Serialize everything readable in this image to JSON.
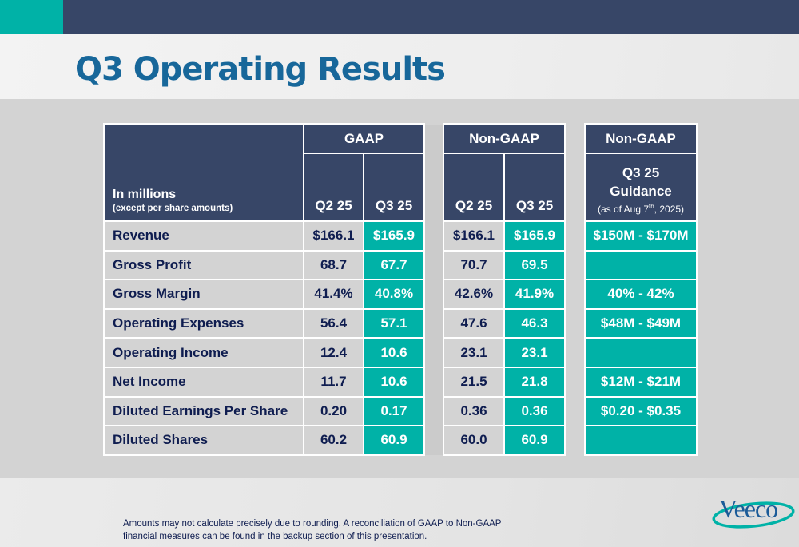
{
  "page": {
    "title": "Q3 Operating Results",
    "accent_color": "#00b2a7",
    "header_color": "#374667",
    "title_color": "#17679a"
  },
  "table": {
    "label_header": "In millions",
    "label_subheader": "(except per share amounts)",
    "gaap": {
      "group_label": "GAAP",
      "columns": [
        "Q2 25",
        "Q3 25"
      ]
    },
    "non_gaap": {
      "group_label": "Non-GAAP",
      "columns": [
        "Q2 25",
        "Q3 25"
      ]
    },
    "guidance": {
      "group_label": "Non-GAAP",
      "column_line1": "Q3 25",
      "column_line2": "Guidance",
      "column_note_prefix": "(as of Aug 7",
      "column_note_sup": "th",
      "column_note_suffix": ", 2025)"
    },
    "rows": [
      {
        "label": "Revenue",
        "gaap_q2": "$166.1",
        "gaap_q3": "$165.9",
        "nongaap_q2": "$166.1",
        "nongaap_q3": "$165.9",
        "guidance": "$150M - $170M"
      },
      {
        "label": "Gross Profit",
        "gaap_q2": "68.7",
        "gaap_q3": "67.7",
        "nongaap_q2": "70.7",
        "nongaap_q3": "69.5",
        "guidance": ""
      },
      {
        "label": "Gross Margin",
        "gaap_q2": "41.4%",
        "gaap_q3": "40.8%",
        "nongaap_q2": "42.6%",
        "nongaap_q3": "41.9%",
        "guidance": "40% - 42%"
      },
      {
        "label": "Operating Expenses",
        "gaap_q2": "56.4",
        "gaap_q3": "57.1",
        "nongaap_q2": "47.6",
        "nongaap_q3": "46.3",
        "guidance": "$48M - $49M"
      },
      {
        "label": "Operating Income",
        "gaap_q2": "12.4",
        "gaap_q3": "10.6",
        "nongaap_q2": "23.1",
        "nongaap_q3": "23.1",
        "guidance": ""
      },
      {
        "label": "Net Income",
        "gaap_q2": "11.7",
        "gaap_q3": "10.6",
        "nongaap_q2": "21.5",
        "nongaap_q3": "21.8",
        "guidance": "$12M - $21M"
      },
      {
        "label": "Diluted Earnings Per Share",
        "gaap_q2": "0.20",
        "gaap_q3": "0.17",
        "nongaap_q2": "0.36",
        "nongaap_q3": "0.36",
        "guidance": "$0.20 - $0.35"
      },
      {
        "label": "Diluted Shares",
        "gaap_q2": "60.2",
        "gaap_q3": "60.9",
        "nongaap_q2": "60.0",
        "nongaap_q3": "60.9",
        "guidance": ""
      }
    ]
  },
  "footer": {
    "footnote_line1": "Amounts may not calculate precisely due to rounding.  A reconciliation of GAAP to Non-GAAP",
    "footnote_line2": "financial measures can be found in the backup section of this presentation.",
    "logo_text": "Veeco",
    "logo_icon": "veeco-swoosh-logo"
  }
}
